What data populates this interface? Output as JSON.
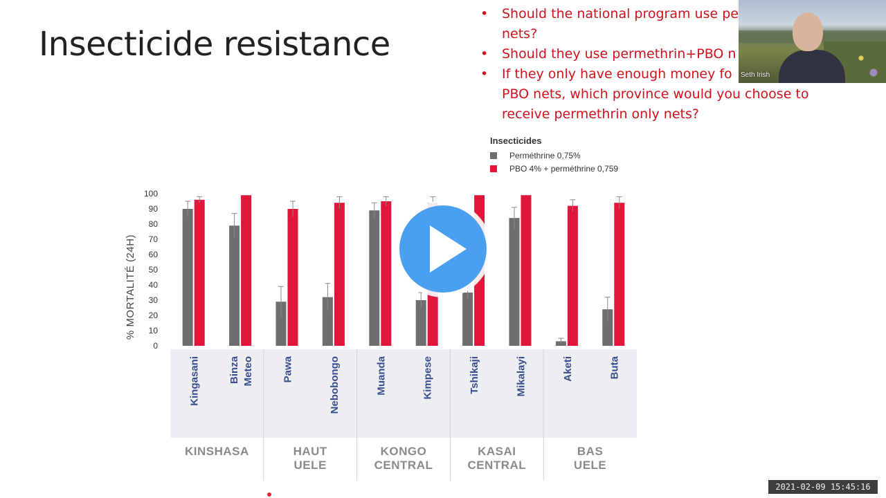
{
  "slide": {
    "title": "Insecticide resistance",
    "questions": [
      "Should the national program use pe",
      "nets?",
      "Should they use permethrin+PBO n",
      "If they only have enough money fo",
      "PBO nets, which province would you choose to",
      "receive permethrin only nets?"
    ]
  },
  "webcam": {
    "name": "Seth Irish"
  },
  "timestamp": "2021-02-09  15:45:16",
  "colors": {
    "red": "#e0173a",
    "grey": "#6e6e6e",
    "question_text": "#d1111c",
    "strip": "#eceef2"
  },
  "chart_data": {
    "type": "bar",
    "ylabel": "% MORTALITÉ (24H)",
    "ylim": [
      0,
      100
    ],
    "yticks": [
      0,
      10,
      20,
      30,
      40,
      50,
      60,
      70,
      80,
      90,
      100
    ],
    "legend_title": "Insecticides",
    "legend_placement": "top-right",
    "series": [
      {
        "name": "Perméthrine 0,75%",
        "color": "#6e6e6e",
        "values": [
          90,
          79,
          29,
          32,
          89,
          30,
          35,
          84,
          3,
          24
        ],
        "errors": [
          5,
          8,
          10,
          9,
          5,
          5,
          4,
          7,
          2,
          8
        ]
      },
      {
        "name": "PBO 4% + perméthrine 0,75%",
        "legend_text": "PBO 4% + perméthrine 0,759",
        "color": "#e0173a",
        "values": [
          96,
          99,
          90,
          94,
          95,
          94,
          99,
          99,
          92,
          94
        ],
        "errors": [
          2,
          0,
          5,
          4,
          3,
          4,
          0,
          0,
          4,
          4
        ]
      }
    ],
    "sites": [
      "Kingasani",
      "Binza\nMeteo",
      "Pawa",
      "Nebobongo",
      "Muanda",
      "Kimpese",
      "Tshikaji",
      "Mikalayi",
      "Aketi",
      "Buta"
    ],
    "provinces": [
      {
        "name": "KINSHASA",
        "sites": 2
      },
      {
        "name": "HAUT\nUELE",
        "sites": 2
      },
      {
        "name": "KONGO\nCENTRAL",
        "sites": 2
      },
      {
        "name": "KASAI\nCENTRAL",
        "sites": 2
      },
      {
        "name": "BAS\nUELE",
        "sites": 2
      }
    ]
  }
}
